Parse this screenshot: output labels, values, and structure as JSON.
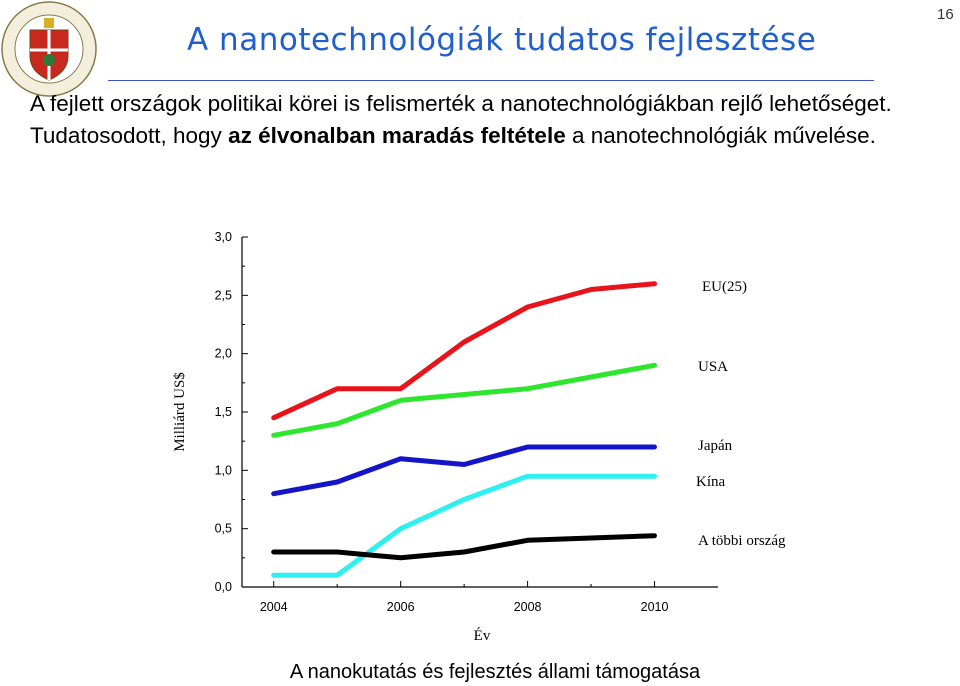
{
  "header": {
    "title": "A nanotechnológiák tudatos fejlesztése",
    "page_number": "16",
    "logo_text": "UNIVERSITAS BUDAPESTINENSIS DE ROLANDO EÖTVÖS NOMINATA"
  },
  "body": {
    "line1": "A fejlett országok politikai körei is felismerték a nanotechnológiákban rejlő lehetőséget.",
    "line2_pre": "Tudatosodott, hogy ",
    "line2_bold": "az élvonalban maradás feltétele",
    "line2_post": " a nanotechnológiák művelése."
  },
  "caption": "A nanokutatás és fejlesztés állami támogatása",
  "chart_data": {
    "type": "line",
    "xlabel": "Év",
    "ylabel": "Milliárd US$",
    "xlim": [
      2003.5,
      2011
    ],
    "ylim": [
      0,
      3
    ],
    "xticks": [
      "2004",
      "2006",
      "2008",
      "2010"
    ],
    "yticks": [
      "0,0",
      "0,5",
      "1,0",
      "1,5",
      "2,0",
      "2,5",
      "3,0"
    ],
    "x": [
      2004,
      2005,
      2006,
      2007,
      2008,
      2009,
      2010
    ],
    "series": [
      {
        "name": "EU(25)",
        "color": "#e8141c",
        "values": [
          1.45,
          1.7,
          1.7,
          2.1,
          2.4,
          2.55,
          2.6
        ]
      },
      {
        "name": "USA",
        "color": "#2ee62e",
        "values": [
          1.3,
          1.4,
          1.6,
          1.65,
          1.7,
          1.8,
          1.9
        ]
      },
      {
        "name": "Japán",
        "color": "#1414c8",
        "values": [
          0.8,
          0.9,
          1.1,
          1.05,
          1.2,
          1.2,
          1.2
        ]
      },
      {
        "name": "Kína",
        "color": "#2ef0f0",
        "values": [
          0.1,
          0.1,
          0.5,
          0.75,
          0.95,
          0.95,
          0.95
        ]
      },
      {
        "name": "A többi ország",
        "color": "#000000",
        "values": [
          0.3,
          0.3,
          0.25,
          0.3,
          0.4,
          0.42,
          0.44
        ]
      }
    ],
    "grid": false,
    "legend": "right, labels next to lines"
  }
}
